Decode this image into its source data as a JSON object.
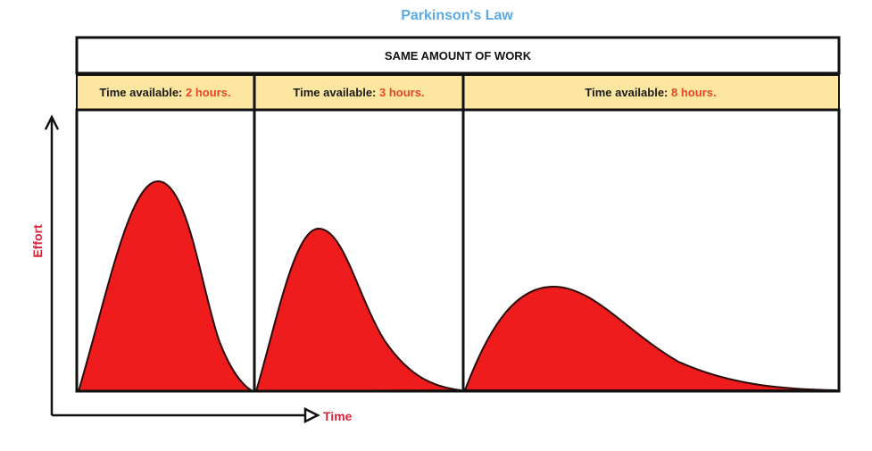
{
  "title": "Parkinson's Law",
  "header": "SAME AMOUNT OF WORK",
  "columns": [
    {
      "prefix": "Time available: ",
      "value": "2 hours."
    },
    {
      "prefix": "Time available: ",
      "value": "3 hours."
    },
    {
      "prefix": "Time available: ",
      "value": "8 hours."
    }
  ],
  "axes": {
    "y_label": "Effort",
    "x_label": "Time"
  },
  "colors": {
    "curve_fill": "#ee1c1c",
    "column_header_bg": "#fde7a0",
    "title": "#5aa9e6",
    "axis_label": "#d9263a",
    "hours": "#e8452a"
  }
}
